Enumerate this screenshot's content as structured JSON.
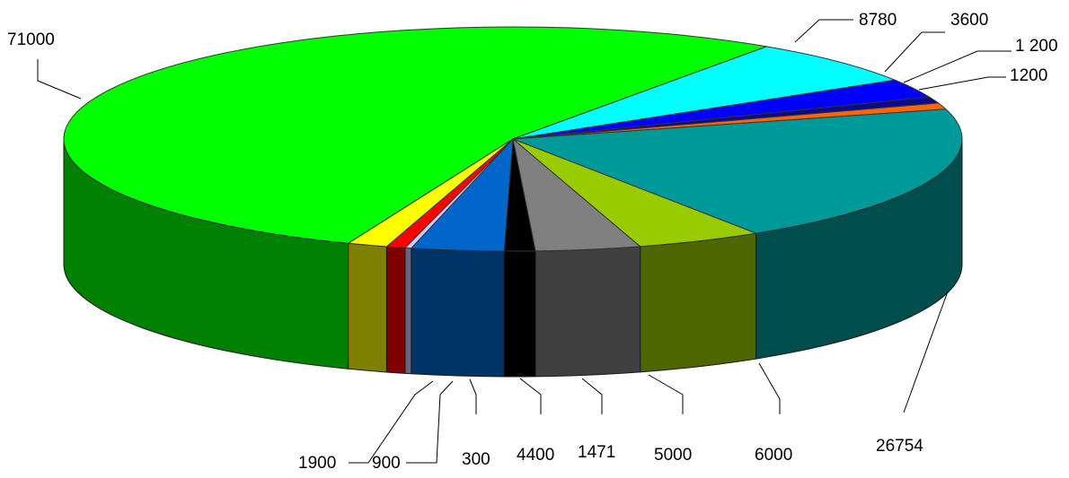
{
  "chart_data": {
    "type": "pie",
    "style": "3d-exploded-perspective",
    "title": "",
    "legend": "none",
    "slices": [
      {
        "label": "71000",
        "value": 71000,
        "color": "#00ff00",
        "side_color": "#008000"
      },
      {
        "label": "8780",
        "value": 8780,
        "color": "#00ffff",
        "side_color": "#008080"
      },
      {
        "label": "3600",
        "value": 3600,
        "color": "#0000ff",
        "side_color": "#000080"
      },
      {
        "label": "1 200",
        "value": 1200,
        "color": "#0a0a8a",
        "side_color": "#00004a"
      },
      {
        "label": "1200",
        "value": 1200,
        "color": "#ff6600",
        "side_color": "#803300"
      },
      {
        "label": "26754",
        "value": 26754,
        "color": "#009999",
        "side_color": "#004d4d"
      },
      {
        "label": "6000",
        "value": 6000,
        "color": "#99cc00",
        "side_color": "#4d6600"
      },
      {
        "label": "5000",
        "value": 5000,
        "color": "#808080",
        "side_color": "#404040"
      },
      {
        "label": "1471",
        "value": 1471,
        "color": "#000000",
        "side_color": "#000000"
      },
      {
        "label": "4400",
        "value": 4400,
        "color": "#0066cc",
        "side_color": "#003366"
      },
      {
        "label": "300",
        "value": 300,
        "color": "#ccccff",
        "side_color": "#666680"
      },
      {
        "label": "900",
        "value": 900,
        "color": "#ff0000",
        "side_color": "#800000"
      },
      {
        "label": "1900",
        "value": 1900,
        "color": "#ffff00",
        "side_color": "#808000"
      }
    ]
  }
}
